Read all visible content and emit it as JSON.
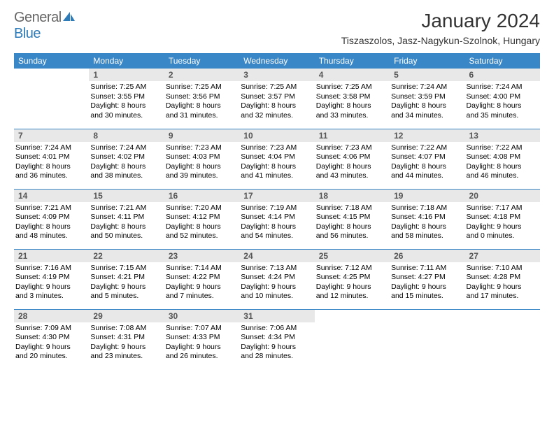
{
  "logo": {
    "general": "General",
    "blue": "Blue",
    "icon_color": "#2f7bb8"
  },
  "title": "January 2024",
  "location": "Tiszaszolos, Jasz-Nagykun-Szolnok, Hungary",
  "header_bg": "#3a87c7",
  "header_fg": "#ffffff",
  "daynum_bg": "#e8e8e8",
  "row_border": "#3a87c7",
  "day_names": [
    "Sunday",
    "Monday",
    "Tuesday",
    "Wednesday",
    "Thursday",
    "Friday",
    "Saturday"
  ],
  "weeks": [
    [
      null,
      {
        "n": "1",
        "sr": "Sunrise: 7:25 AM",
        "ss": "Sunset: 3:55 PM",
        "d1": "Daylight: 8 hours",
        "d2": "and 30 minutes."
      },
      {
        "n": "2",
        "sr": "Sunrise: 7:25 AM",
        "ss": "Sunset: 3:56 PM",
        "d1": "Daylight: 8 hours",
        "d2": "and 31 minutes."
      },
      {
        "n": "3",
        "sr": "Sunrise: 7:25 AM",
        "ss": "Sunset: 3:57 PM",
        "d1": "Daylight: 8 hours",
        "d2": "and 32 minutes."
      },
      {
        "n": "4",
        "sr": "Sunrise: 7:25 AM",
        "ss": "Sunset: 3:58 PM",
        "d1": "Daylight: 8 hours",
        "d2": "and 33 minutes."
      },
      {
        "n": "5",
        "sr": "Sunrise: 7:24 AM",
        "ss": "Sunset: 3:59 PM",
        "d1": "Daylight: 8 hours",
        "d2": "and 34 minutes."
      },
      {
        "n": "6",
        "sr": "Sunrise: 7:24 AM",
        "ss": "Sunset: 4:00 PM",
        "d1": "Daylight: 8 hours",
        "d2": "and 35 minutes."
      }
    ],
    [
      {
        "n": "7",
        "sr": "Sunrise: 7:24 AM",
        "ss": "Sunset: 4:01 PM",
        "d1": "Daylight: 8 hours",
        "d2": "and 36 minutes."
      },
      {
        "n": "8",
        "sr": "Sunrise: 7:24 AM",
        "ss": "Sunset: 4:02 PM",
        "d1": "Daylight: 8 hours",
        "d2": "and 38 minutes."
      },
      {
        "n": "9",
        "sr": "Sunrise: 7:23 AM",
        "ss": "Sunset: 4:03 PM",
        "d1": "Daylight: 8 hours",
        "d2": "and 39 minutes."
      },
      {
        "n": "10",
        "sr": "Sunrise: 7:23 AM",
        "ss": "Sunset: 4:04 PM",
        "d1": "Daylight: 8 hours",
        "d2": "and 41 minutes."
      },
      {
        "n": "11",
        "sr": "Sunrise: 7:23 AM",
        "ss": "Sunset: 4:06 PM",
        "d1": "Daylight: 8 hours",
        "d2": "and 43 minutes."
      },
      {
        "n": "12",
        "sr": "Sunrise: 7:22 AM",
        "ss": "Sunset: 4:07 PM",
        "d1": "Daylight: 8 hours",
        "d2": "and 44 minutes."
      },
      {
        "n": "13",
        "sr": "Sunrise: 7:22 AM",
        "ss": "Sunset: 4:08 PM",
        "d1": "Daylight: 8 hours",
        "d2": "and 46 minutes."
      }
    ],
    [
      {
        "n": "14",
        "sr": "Sunrise: 7:21 AM",
        "ss": "Sunset: 4:09 PM",
        "d1": "Daylight: 8 hours",
        "d2": "and 48 minutes."
      },
      {
        "n": "15",
        "sr": "Sunrise: 7:21 AM",
        "ss": "Sunset: 4:11 PM",
        "d1": "Daylight: 8 hours",
        "d2": "and 50 minutes."
      },
      {
        "n": "16",
        "sr": "Sunrise: 7:20 AM",
        "ss": "Sunset: 4:12 PM",
        "d1": "Daylight: 8 hours",
        "d2": "and 52 minutes."
      },
      {
        "n": "17",
        "sr": "Sunrise: 7:19 AM",
        "ss": "Sunset: 4:14 PM",
        "d1": "Daylight: 8 hours",
        "d2": "and 54 minutes."
      },
      {
        "n": "18",
        "sr": "Sunrise: 7:18 AM",
        "ss": "Sunset: 4:15 PM",
        "d1": "Daylight: 8 hours",
        "d2": "and 56 minutes."
      },
      {
        "n": "19",
        "sr": "Sunrise: 7:18 AM",
        "ss": "Sunset: 4:16 PM",
        "d1": "Daylight: 8 hours",
        "d2": "and 58 minutes."
      },
      {
        "n": "20",
        "sr": "Sunrise: 7:17 AM",
        "ss": "Sunset: 4:18 PM",
        "d1": "Daylight: 9 hours",
        "d2": "and 0 minutes."
      }
    ],
    [
      {
        "n": "21",
        "sr": "Sunrise: 7:16 AM",
        "ss": "Sunset: 4:19 PM",
        "d1": "Daylight: 9 hours",
        "d2": "and 3 minutes."
      },
      {
        "n": "22",
        "sr": "Sunrise: 7:15 AM",
        "ss": "Sunset: 4:21 PM",
        "d1": "Daylight: 9 hours",
        "d2": "and 5 minutes."
      },
      {
        "n": "23",
        "sr": "Sunrise: 7:14 AM",
        "ss": "Sunset: 4:22 PM",
        "d1": "Daylight: 9 hours",
        "d2": "and 7 minutes."
      },
      {
        "n": "24",
        "sr": "Sunrise: 7:13 AM",
        "ss": "Sunset: 4:24 PM",
        "d1": "Daylight: 9 hours",
        "d2": "and 10 minutes."
      },
      {
        "n": "25",
        "sr": "Sunrise: 7:12 AM",
        "ss": "Sunset: 4:25 PM",
        "d1": "Daylight: 9 hours",
        "d2": "and 12 minutes."
      },
      {
        "n": "26",
        "sr": "Sunrise: 7:11 AM",
        "ss": "Sunset: 4:27 PM",
        "d1": "Daylight: 9 hours",
        "d2": "and 15 minutes."
      },
      {
        "n": "27",
        "sr": "Sunrise: 7:10 AM",
        "ss": "Sunset: 4:28 PM",
        "d1": "Daylight: 9 hours",
        "d2": "and 17 minutes."
      }
    ],
    [
      {
        "n": "28",
        "sr": "Sunrise: 7:09 AM",
        "ss": "Sunset: 4:30 PM",
        "d1": "Daylight: 9 hours",
        "d2": "and 20 minutes."
      },
      {
        "n": "29",
        "sr": "Sunrise: 7:08 AM",
        "ss": "Sunset: 4:31 PM",
        "d1": "Daylight: 9 hours",
        "d2": "and 23 minutes."
      },
      {
        "n": "30",
        "sr": "Sunrise: 7:07 AM",
        "ss": "Sunset: 4:33 PM",
        "d1": "Daylight: 9 hours",
        "d2": "and 26 minutes."
      },
      {
        "n": "31",
        "sr": "Sunrise: 7:06 AM",
        "ss": "Sunset: 4:34 PM",
        "d1": "Daylight: 9 hours",
        "d2": "and 28 minutes."
      },
      null,
      null,
      null
    ]
  ]
}
